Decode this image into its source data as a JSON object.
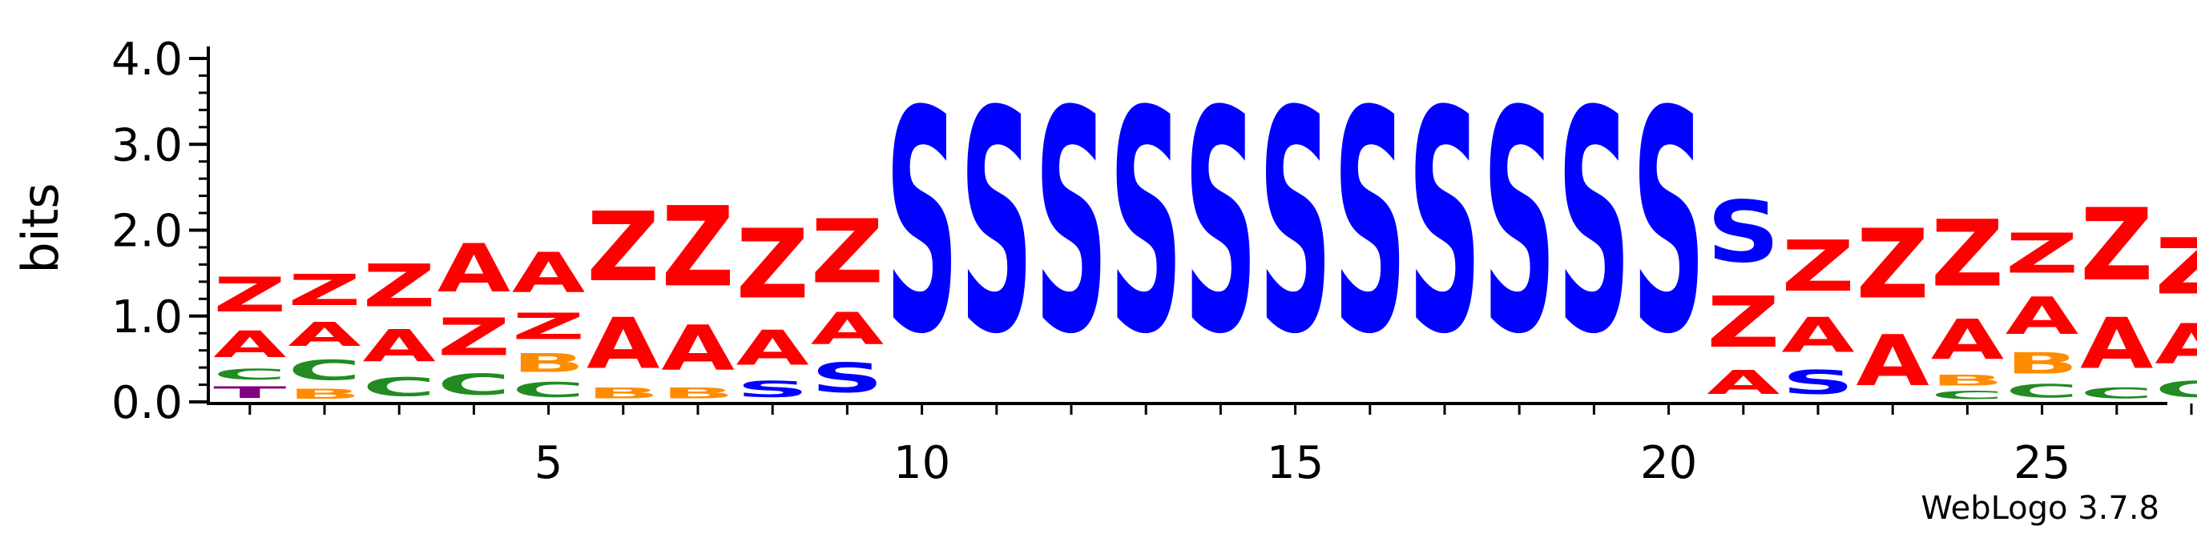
{
  "chart_data": {
    "type": "sequence-logo",
    "ylabel": "bits",
    "ylim": [
      0,
      4.0
    ],
    "yticks": [
      "0.0",
      "1.0",
      "2.0",
      "3.0",
      "4.0"
    ],
    "xticks": [
      5,
      10,
      15,
      20,
      25
    ],
    "footer": "WebLogo 3.7.8",
    "colors": {
      "Z": "#ff0000",
      "A": "#ff0000",
      "S": "#0000ff",
      "C": "#228b22",
      "B": "#ff8c00",
      "T": "#800080"
    },
    "positions": [
      {
        "pos": 1,
        "stack": [
          [
            "T",
            0.22
          ],
          [
            "C",
            0.2
          ],
          [
            "A",
            0.5
          ],
          [
            "Z",
            0.65
          ]
        ]
      },
      {
        "pos": 2,
        "stack": [
          [
            "B",
            0.18
          ],
          [
            "C",
            0.38
          ],
          [
            "A",
            0.45
          ],
          [
            "Z",
            0.58
          ]
        ]
      },
      {
        "pos": 3,
        "stack": [
          [
            "C",
            0.35
          ],
          [
            "A",
            0.6
          ],
          [
            "Z",
            0.8
          ]
        ]
      },
      {
        "pos": 4,
        "stack": [
          [
            "C",
            0.4
          ],
          [
            "Z",
            0.7
          ],
          [
            "A",
            0.9
          ]
        ]
      },
      {
        "pos": 5,
        "stack": [
          [
            "C",
            0.28
          ],
          [
            "B",
            0.35
          ],
          [
            "Z",
            0.5
          ],
          [
            "A",
            0.75
          ]
        ]
      },
      {
        "pos": 6,
        "stack": [
          [
            "B",
            0.2
          ],
          [
            "A",
            0.95
          ],
          [
            "Z",
            1.3
          ]
        ]
      },
      {
        "pos": 7,
        "stack": [
          [
            "B",
            0.2
          ],
          [
            "A",
            0.85
          ],
          [
            "Z",
            1.5
          ]
        ]
      },
      {
        "pos": 8,
        "stack": [
          [
            "S",
            0.3
          ],
          [
            "A",
            0.65
          ],
          [
            "Z",
            1.3
          ]
        ]
      },
      {
        "pos": 9,
        "stack": [
          [
            "S",
            0.55
          ],
          [
            "A",
            0.6
          ],
          [
            "Z",
            1.2
          ]
        ]
      },
      {
        "pos": 10,
        "stack": [
          [
            "S",
            4.15
          ]
        ]
      },
      {
        "pos": 11,
        "stack": [
          [
            "S",
            4.15
          ]
        ]
      },
      {
        "pos": 12,
        "stack": [
          [
            "S",
            4.15
          ]
        ]
      },
      {
        "pos": 13,
        "stack": [
          [
            "S",
            4.15
          ]
        ]
      },
      {
        "pos": 14,
        "stack": [
          [
            "S",
            4.15
          ]
        ]
      },
      {
        "pos": 15,
        "stack": [
          [
            "S",
            4.15
          ]
        ]
      },
      {
        "pos": 16,
        "stack": [
          [
            "S",
            4.15
          ]
        ]
      },
      {
        "pos": 17,
        "stack": [
          [
            "S",
            4.15
          ]
        ]
      },
      {
        "pos": 18,
        "stack": [
          [
            "S",
            4.15
          ]
        ]
      },
      {
        "pos": 19,
        "stack": [
          [
            "S",
            4.15
          ]
        ]
      },
      {
        "pos": 20,
        "stack": [
          [
            "S",
            4.15
          ]
        ]
      },
      {
        "pos": 21,
        "stack": [
          [
            "A",
            0.45
          ],
          [
            "Z",
            0.95
          ],
          [
            "S",
            1.15
          ]
        ]
      },
      {
        "pos": 22,
        "stack": [
          [
            "S",
            0.45
          ],
          [
            "A",
            0.65
          ],
          [
            "Z",
            0.95
          ]
        ]
      },
      {
        "pos": 23,
        "stack": [
          [
            "A",
            0.95
          ],
          [
            "Z",
            1.3
          ]
        ]
      },
      {
        "pos": 24,
        "stack": [
          [
            "C",
            0.15
          ],
          [
            "B",
            0.2
          ],
          [
            "A",
            0.75
          ],
          [
            "Z",
            1.25
          ]
        ]
      },
      {
        "pos": 25,
        "stack": [
          [
            "C",
            0.25
          ],
          [
            "B",
            0.4
          ],
          [
            "A",
            0.7
          ],
          [
            "Z",
            0.75
          ]
        ]
      },
      {
        "pos": 26,
        "stack": [
          [
            "C",
            0.2
          ],
          [
            "A",
            0.95
          ],
          [
            "Z",
            1.35
          ]
        ]
      },
      {
        "pos": 27,
        "stack": [
          [
            "C",
            0.3
          ],
          [
            "A",
            0.75
          ],
          [
            "Z",
            1.05
          ]
        ]
      }
    ]
  }
}
